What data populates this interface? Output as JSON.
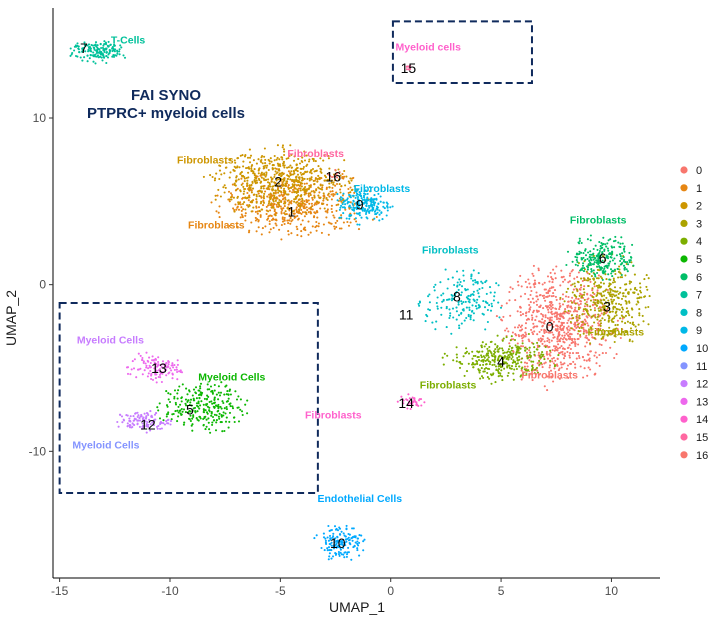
{
  "chart_data": {
    "type": "scatter",
    "title_lines": [
      "FAI SYNO",
      "PTPRC+ myeloid cells"
    ],
    "xlabel": "UMAP_1",
    "ylabel": "UMAP_2",
    "xlim": [
      -15.3,
      12.2
    ],
    "ylim": [
      -17.6,
      16.6
    ],
    "xticks": [
      -15,
      -10,
      -5,
      0,
      5,
      10
    ],
    "yticks": [
      -10,
      0,
      10
    ],
    "grid": false,
    "legend_position": "right",
    "title_color": "#0f2a5c",
    "box_color": "#0f2a5c",
    "clusters": [
      {
        "id": "0",
        "color": "#F8766D",
        "cx": 7.6,
        "cy": -2.5,
        "sx": 1.2,
        "sy": 1.6,
        "n": 750,
        "label": {
          "text": "0",
          "x": 7.2,
          "y": -2.5
        }
      },
      {
        "id": "1",
        "color": "#E68613",
        "cx": -4.3,
        "cy": 4.8,
        "sx": 1.6,
        "sy": 0.9,
        "n": 500,
        "label": {
          "text": "1",
          "x": -4.5,
          "y": 4.4
        }
      },
      {
        "id": "2",
        "color": "#CD9600",
        "cx": -5.0,
        "cy": 6.2,
        "sx": 1.5,
        "sy": 0.9,
        "n": 600,
        "label": {
          "text": "2",
          "x": -5.1,
          "y": 6.2
        }
      },
      {
        "id": "3",
        "color": "#ABA300",
        "cx": 9.8,
        "cy": -1.0,
        "sx": 0.9,
        "sy": 1.2,
        "n": 380,
        "label": {
          "text": "3",
          "x": 9.8,
          "y": -1.3
        }
      },
      {
        "id": "4",
        "color": "#7CAE00",
        "cx": 5.0,
        "cy": -4.5,
        "sx": 1.1,
        "sy": 0.6,
        "n": 320,
        "label": {
          "text": "4",
          "x": 5.0,
          "y": -4.6
        }
      },
      {
        "id": "5",
        "color": "#0CB702",
        "cx": -8.5,
        "cy": -7.3,
        "sx": 0.9,
        "sy": 0.7,
        "n": 260,
        "label": {
          "text": "5",
          "x": -9.1,
          "y": -7.5
        }
      },
      {
        "id": "6",
        "color": "#00BE67",
        "cx": 9.6,
        "cy": 1.6,
        "sx": 0.7,
        "sy": 0.6,
        "n": 230,
        "label": {
          "text": "6",
          "x": 9.6,
          "y": 1.6
        }
      },
      {
        "id": "7",
        "color": "#00C19A",
        "cx": -13.2,
        "cy": 14.0,
        "sx": 0.6,
        "sy": 0.3,
        "n": 160,
        "label": {
          "text": "7",
          "x": -13.9,
          "y": 14.2
        }
      },
      {
        "id": "8",
        "color": "#00BFC4",
        "cx": 3.2,
        "cy": -1.0,
        "sx": 0.8,
        "sy": 0.9,
        "n": 180,
        "label": {
          "text": "8",
          "x": 3.0,
          "y": -0.7
        }
      },
      {
        "id": "9",
        "color": "#00B8E7",
        "cx": -1.2,
        "cy": 4.8,
        "sx": 0.6,
        "sy": 0.5,
        "n": 200,
        "label": {
          "text": "9",
          "x": -1.4,
          "y": 4.8
        }
      },
      {
        "id": "10",
        "color": "#00A9FF",
        "cx": -2.3,
        "cy": -15.4,
        "sx": 0.5,
        "sy": 0.5,
        "n": 150,
        "label": {
          "text": "10",
          "x": -2.4,
          "y": -15.5
        }
      },
      {
        "id": "11",
        "color": "#8494FF",
        "cx": 0.7,
        "cy": -1.8,
        "sx": 0.05,
        "sy": 0.05,
        "n": 0,
        "label": {
          "text": "11",
          "x": 0.7,
          "y": -1.8
        }
      },
      {
        "id": "12",
        "color": "#C77CFF",
        "cx": -11.2,
        "cy": -8.2,
        "sx": 0.6,
        "sy": 0.3,
        "n": 110,
        "label": {
          "text": "12",
          "x": -11.0,
          "y": -8.4
        }
      },
      {
        "id": "13",
        "color": "#ED68ED",
        "cx": -10.7,
        "cy": -5.0,
        "sx": 0.6,
        "sy": 0.4,
        "n": 120,
        "label": {
          "text": "13",
          "x": -10.5,
          "y": -5.0
        }
      },
      {
        "id": "14",
        "color": "#FF61CC",
        "cx": 1.0,
        "cy": -7.0,
        "sx": 0.3,
        "sy": 0.2,
        "n": 35,
        "label": {
          "text": "14",
          "x": 0.7,
          "y": -7.1
        }
      },
      {
        "id": "15",
        "color": "#FF68A1",
        "cx": 0.8,
        "cy": 13.0,
        "sx": 0.1,
        "sy": 0.1,
        "n": 10,
        "label": {
          "text": "15",
          "x": 0.8,
          "y": 13.0
        }
      },
      {
        "id": "16",
        "color": "#F8766D",
        "cx": -2.6,
        "cy": 6.5,
        "sx": 0.2,
        "sy": 0.2,
        "n": 10,
        "label": {
          "text": "16",
          "x": -2.6,
          "y": 6.5
        }
      }
    ],
    "annotations": [
      {
        "text": "T-Cells",
        "x": -11.9,
        "y": 14.7,
        "color": "#00C19A"
      },
      {
        "text": "Myeloid cells",
        "x": 1.7,
        "y": 14.3,
        "color": "#FF61CC"
      },
      {
        "text": "Fibroblasts",
        "x": -8.4,
        "y": 7.5,
        "color": "#CD9600"
      },
      {
        "text": "Fibroblasts",
        "x": -3.4,
        "y": 7.9,
        "color": "#FF68A1"
      },
      {
        "text": "Fibroblasts",
        "x": -0.4,
        "y": 5.8,
        "color": "#00B8E7"
      },
      {
        "text": "Fibroblasts",
        "x": -7.9,
        "y": 3.6,
        "color": "#E68613"
      },
      {
        "text": "Fibroblasts",
        "x": 9.4,
        "y": 3.9,
        "color": "#00BE67"
      },
      {
        "text": "Fibroblasts",
        "x": 2.7,
        "y": 2.1,
        "color": "#00BFC4"
      },
      {
        "text": "Fibroblasts",
        "x": 10.2,
        "y": -2.8,
        "color": "#ABA300"
      },
      {
        "text": "Fibroblasts",
        "x": 7.2,
        "y": -5.4,
        "color": "#F8766D"
      },
      {
        "text": "Fibroblasts",
        "x": 2.6,
        "y": -6.0,
        "color": "#7CAE00"
      },
      {
        "text": "Fibroblasts",
        "x": -2.6,
        "y": -7.8,
        "color": "#FF61CC"
      },
      {
        "text": "Myeloid Cells",
        "x": -12.7,
        "y": -3.3,
        "color": "#C77CFF"
      },
      {
        "text": "Myeloid Cells",
        "x": -7.2,
        "y": -5.5,
        "color": "#0CB702"
      },
      {
        "text": "Myeloid Cells",
        "x": -12.9,
        "y": -9.6,
        "color": "#8494FF"
      },
      {
        "text": "Endothelial Cells",
        "x": -1.4,
        "y": -12.8,
        "color": "#00A9FF"
      }
    ],
    "dashed_boxes": [
      {
        "x0": -15.0,
        "x1": -3.3,
        "y0": -12.5,
        "y1": -1.1
      },
      {
        "x0": 0.1,
        "x1": 6.4,
        "y0": 12.1,
        "y1": 15.8
      }
    ],
    "legend": {
      "entries": [
        "0",
        "1",
        "2",
        "3",
        "4",
        "5",
        "6",
        "7",
        "8",
        "9",
        "10",
        "11",
        "12",
        "13",
        "14",
        "15",
        "16"
      ]
    }
  }
}
